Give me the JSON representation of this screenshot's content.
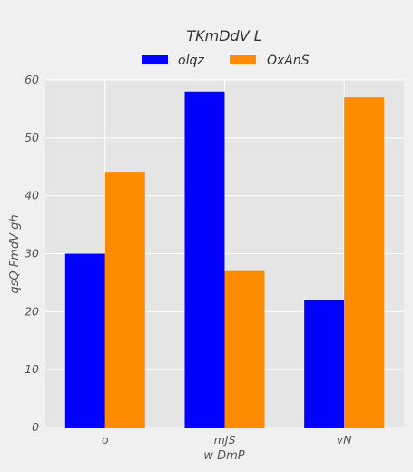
{
  "chart_data": {
    "type": "bar",
    "title": "TKmDdV L",
    "xlabel": "w DmP",
    "ylabel": "qsQ FmdV gh",
    "categories": [
      "o",
      "mJS",
      "vN"
    ],
    "series": [
      {
        "name": "olqz",
        "values": [
          30,
          58,
          22
        ],
        "color": "#0000ff"
      },
      {
        "name": "OxAnS",
        "values": [
          44,
          27,
          57
        ],
        "color": "#ff8c00"
      }
    ],
    "ylim": [
      0,
      60
    ],
    "yticks": [
      0,
      10,
      20,
      30,
      40,
      50,
      60
    ],
    "grid": true,
    "legend_position": "top-center",
    "background_color": "#e5e5e5",
    "grid_color": "#ffffff"
  }
}
